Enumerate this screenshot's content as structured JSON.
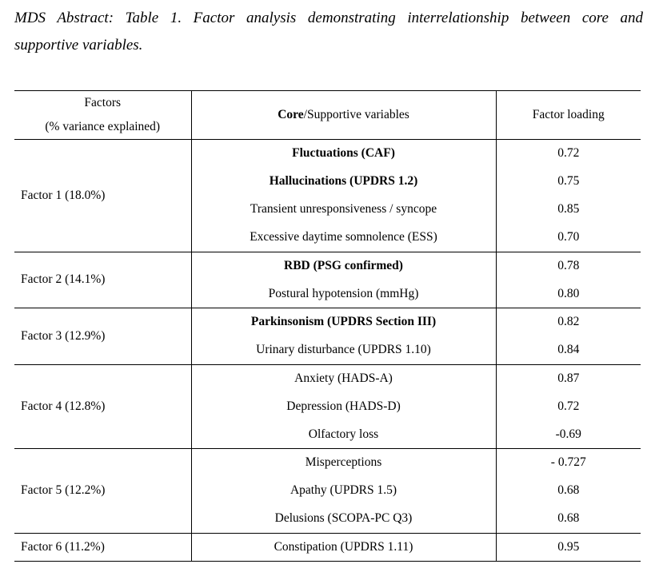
{
  "caption": {
    "line1": "MDS Abstract: Table 1. Factor analysis demonstrating interrelationship between core and",
    "line2": "supportive variables."
  },
  "header": {
    "factors_line1": "Factors",
    "factors_line2": "(% variance explained)",
    "variables_bold": "Core",
    "variables_rest": "/Supportive variables",
    "loading": "Factor loading"
  },
  "groups": [
    {
      "factor": "Factor 1 (18.0%)",
      "rows": [
        {
          "variable": "Fluctuations (CAF)",
          "core": true,
          "loading": "0.72"
        },
        {
          "variable": "Hallucinations (UPDRS 1.2)",
          "core": true,
          "loading": "0.75"
        },
        {
          "variable": "Transient unresponsiveness / syncope",
          "core": false,
          "loading": "0.85"
        },
        {
          "variable": "Excessive daytime somnolence (ESS)",
          "core": false,
          "loading": "0.70"
        }
      ]
    },
    {
      "factor": "Factor 2 (14.1%)",
      "rows": [
        {
          "variable": "RBD (PSG confirmed)",
          "core": true,
          "loading": "0.78"
        },
        {
          "variable": "Postural hypotension (mmHg)",
          "core": false,
          "loading": "0.80"
        }
      ]
    },
    {
      "factor": "Factor 3 (12.9%)",
      "rows": [
        {
          "variable": "Parkinsonism (UPDRS Section III)",
          "core": true,
          "loading": "0.82"
        },
        {
          "variable": "Urinary disturbance (UPDRS 1.10)",
          "core": false,
          "loading": "0.84"
        }
      ]
    },
    {
      "factor": "Factor 4 (12.8%)",
      "rows": [
        {
          "variable": "Anxiety (HADS-A)",
          "core": false,
          "loading": "0.87"
        },
        {
          "variable": "Depression (HADS-D)",
          "core": false,
          "loading": "0.72"
        },
        {
          "variable": "Olfactory loss",
          "core": false,
          "loading": "-0.69"
        }
      ]
    },
    {
      "factor": "Factor 5 (12.2%)",
      "rows": [
        {
          "variable": "Misperceptions",
          "core": false,
          "loading": "- 0.727"
        },
        {
          "variable": "Apathy (UPDRS 1.5)",
          "core": false,
          "loading": "0.68"
        },
        {
          "variable": "Delusions (SCOPA-PC Q3)",
          "core": false,
          "loading": "0.68"
        }
      ]
    },
    {
      "factor": "Factor 6 (11.2%)",
      "rows": [
        {
          "variable": "Constipation (UPDRS 1.11)",
          "core": false,
          "loading": "0.95"
        }
      ]
    }
  ]
}
